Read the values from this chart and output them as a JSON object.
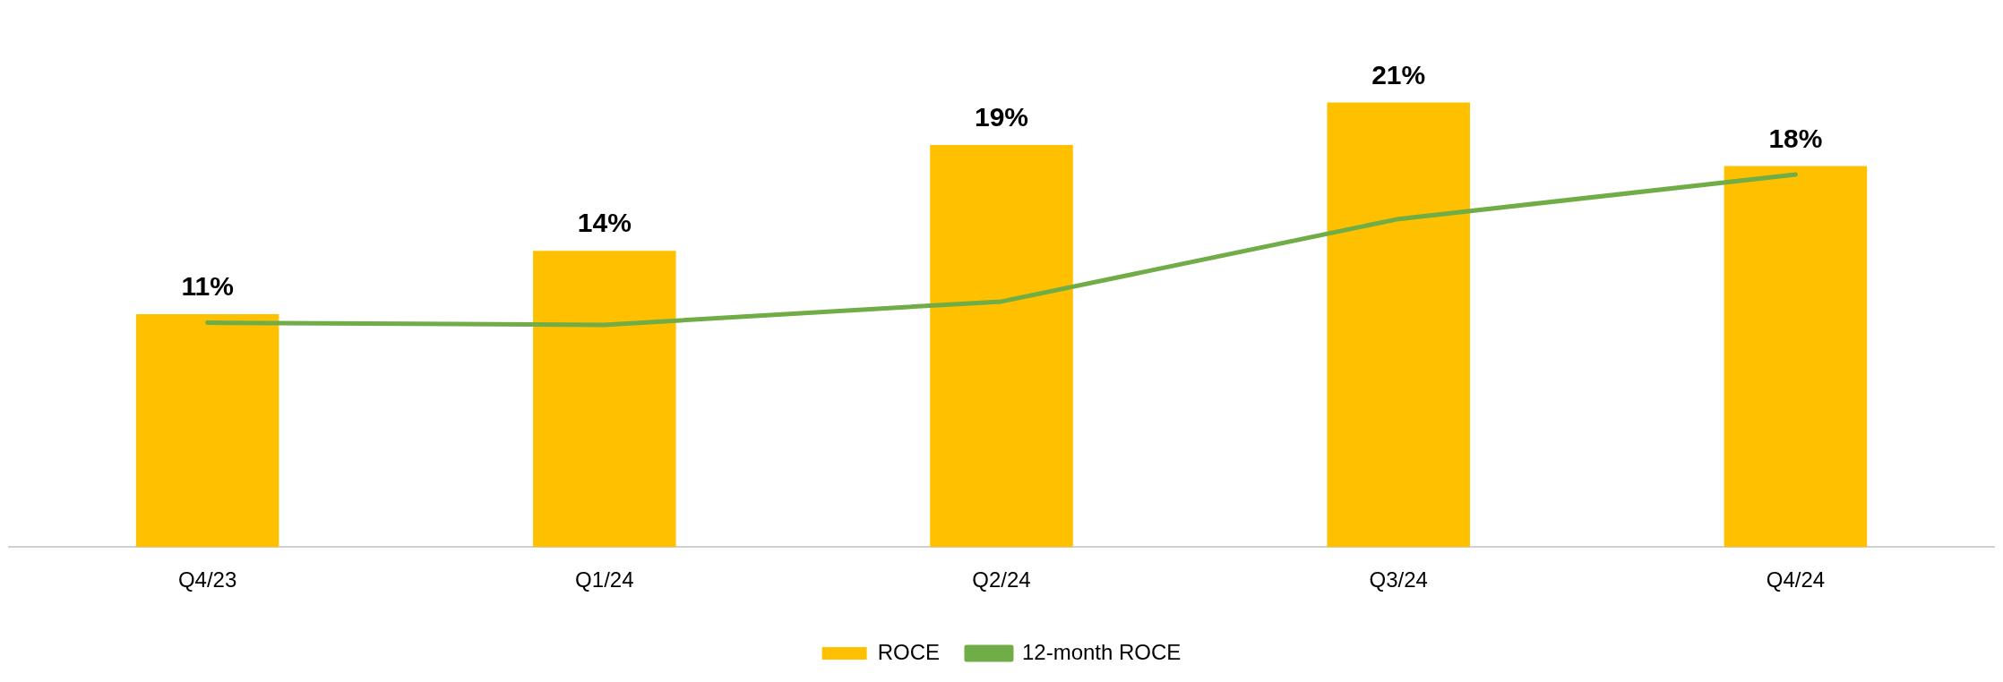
{
  "chart_data": {
    "type": "bar",
    "categories": [
      "Q4/23",
      "Q1/24",
      "Q2/24",
      "Q3/24",
      "Q4/24"
    ],
    "series": [
      {
        "name": "ROCE",
        "color": "#ffc000",
        "values": [
          11,
          14,
          19,
          21,
          18
        ],
        "value_labels": [
          "11%",
          "14%",
          "19%",
          "21%",
          "18%"
        ]
      },
      {
        "name": "12-month ROCE",
        "type": "line",
        "color": "#70ad47",
        "values": [
          10.6,
          10.5,
          11.6,
          15.5,
          17.6
        ],
        "marker": "none"
      }
    ],
    "grid": false,
    "legend": "bottom"
  }
}
